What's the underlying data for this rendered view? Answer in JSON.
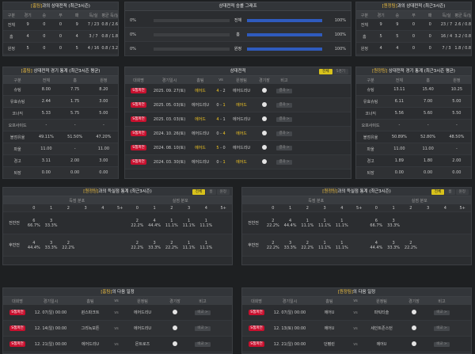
{
  "overall": {
    "left": {
      "title_hl": "[홈팀]",
      "title_rest": "과의 상대전적 (최근3시즌)",
      "headers": [
        "구분",
        "경기",
        "승",
        "무",
        "패",
        "득/실",
        "평균 득/실"
      ],
      "rows": [
        [
          "전체",
          "9",
          "0",
          "0",
          "9",
          "7 / 23",
          "0.8 / 2.6"
        ],
        [
          "홈",
          "4",
          "0",
          "0",
          "4",
          "3 / 7",
          "0.8 / 1.8"
        ],
        [
          "원정",
          "5",
          "0",
          "0",
          "5",
          "4 / 16",
          "0.8 / 3.2"
        ]
      ]
    },
    "right": {
      "title_hl": "[원정팀]",
      "title_rest": "과의 상대전적 (최근3시즌)",
      "headers": [
        "구분",
        "경기",
        "승",
        "무",
        "패",
        "득/실",
        "평균 득/실"
      ],
      "rows": [
        [
          "전체",
          "9",
          "9",
          "0",
          "0",
          "23 / 7",
          "2.6 / 0.8"
        ],
        [
          "홈",
          "5",
          "5",
          "0",
          "0",
          "16 / 4",
          "3.2 / 0.8"
        ],
        [
          "원정",
          "4",
          "4",
          "0",
          "0",
          "7 / 3",
          "1.8 / 0.8"
        ]
      ]
    }
  },
  "winrate": {
    "title": "상대전적 승률 그래프",
    "rows": [
      {
        "left": "0%",
        "label": "전체",
        "right": "100%",
        "value": 100
      },
      {
        "left": "0%",
        "label": "홈",
        "right": "100%",
        "value": 100
      },
      {
        "left": "0%",
        "label": "원정",
        "right": "100%",
        "value": 100
      }
    ]
  },
  "match_stats": {
    "left": {
      "title_hl": "[홈팀]",
      "title_rest": " 상대전적 경기 통계 (최근3시즌 평균)",
      "headers": [
        "구분",
        "전체",
        "홈",
        "원정"
      ],
      "rows": [
        [
          "슈팅",
          "8.00",
          "7.75",
          "8.20"
        ],
        [
          "유효슈팅",
          "2.44",
          "1.75",
          "3.00"
        ],
        [
          "코너킥",
          "5.33",
          "5.75",
          "5.00"
        ],
        [
          "오프사이드",
          "-",
          "-",
          "-"
        ],
        [
          "볼점유율",
          "49.11%",
          "51.50%",
          "47.20%"
        ],
        [
          "파울",
          "11.00",
          "-",
          "11.00"
        ],
        [
          "경고",
          "3.11",
          "2.00",
          "3.00"
        ],
        [
          "퇴장",
          "0.00",
          "0.00",
          "0.00"
        ]
      ]
    },
    "right": {
      "title_hl": "[원정팀]",
      "title_rest": " 상대전적 경기 통계 (최근3시즌 평균)",
      "headers": [
        "구분",
        "전체",
        "홈",
        "원정"
      ],
      "rows": [
        [
          "슈팅",
          "13.11",
          "15.40",
          "10.25"
        ],
        [
          "유효슈팅",
          "6.11",
          "7.00",
          "5.00"
        ],
        [
          "코너킥",
          "5.56",
          "5.60",
          "5.50"
        ],
        [
          "오프사이드",
          "-",
          "-",
          "-"
        ],
        [
          "볼점유율",
          "50.89%",
          "52.80%",
          "48.50%"
        ],
        [
          "파울",
          "11.00",
          "11.00",
          "-"
        ],
        [
          "경고",
          "1.89",
          "1.80",
          "2.00"
        ],
        [
          "퇴장",
          "0.00",
          "0.00",
          "0.00"
        ]
      ]
    }
  },
  "h2h": {
    "title": "상대전적",
    "toggle": [
      "전체",
      "5경기"
    ],
    "headers": [
      "대회명",
      "경기일시",
      "홈팀",
      "vs",
      "원정팀",
      "경기장",
      "비고"
    ],
    "rows": [
      {
        "league": "S챔피언",
        "date": "2025. 09. 27(토)",
        "home": "에어드",
        "hs": "4",
        "as": "2",
        "away": "에어드리U",
        "btn": "결과 >"
      },
      {
        "league": "S챔피언",
        "date": "2025. 05. 03(토)",
        "home": "에어드리U",
        "hs": "0",
        "as": "1",
        "away": "에어드",
        "btn": "결과 >"
      },
      {
        "league": "S챔피언",
        "date": "2025. 03. 03(토)",
        "home": "에어드",
        "hs": "4",
        "as": "1",
        "away": "에어드리U",
        "btn": "결과 >"
      },
      {
        "league": "S챔피언",
        "date": "2024. 10. 26(토)",
        "home": "에어드리U",
        "hs": "0",
        "as": "4",
        "away": "에어드",
        "btn": "결과 >"
      },
      {
        "league": "S챔피언",
        "date": "2024. 08. 10(토)",
        "home": "에어드",
        "hs": "5",
        "as": "0",
        "away": "에어드리U",
        "btn": "결과 >"
      },
      {
        "league": "S챔피언",
        "date": "2024. 03. 30(토)",
        "home": "에어드리U",
        "hs": "0",
        "as": "1",
        "away": "에어드",
        "btn": "결과 >"
      }
    ]
  },
  "goal_dist": {
    "left": {
      "title_hl": "[원정팀]",
      "title_rest": "과의 득실점 통계 (최근3시즌)",
      "toggle": [
        "전체",
        "홈",
        "원정"
      ],
      "score_head": "득점 분포",
      "concede_head": "실점 분포",
      "cols": [
        "0",
        "1",
        "2",
        "3",
        "4",
        "5+"
      ],
      "rows": [
        {
          "label": "전반전",
          "score": [
            [
              "6",
              "66.7%"
            ],
            [
              "3",
              "33.3%"
            ],
            [],
            [],
            [],
            []
          ],
          "concede": [
            [
              "2",
              "22.2%"
            ],
            [
              "4",
              "44.4%"
            ],
            [
              "1",
              "11.1%"
            ],
            [
              "1",
              "11.1%"
            ],
            [
              "1",
              "11.1%"
            ],
            []
          ]
        },
        {
          "label": "후반전",
          "score": [
            [
              "4",
              "44.4%"
            ],
            [
              "3",
              "33.3%"
            ],
            [
              "2",
              "22.2%"
            ],
            [],
            [],
            []
          ],
          "concede": [
            [
              "2",
              "22.2%"
            ],
            [
              "3",
              "33.3%"
            ],
            [
              "2",
              "22.2%"
            ],
            [
              "1",
              "11.1%"
            ],
            [
              "1",
              "11.1%"
            ],
            []
          ]
        }
      ]
    },
    "right": {
      "title_hl": "[원정팀]",
      "title_rest": "과의 득실점 통계 (최근3시즌)",
      "toggle": [
        "전체",
        "홈",
        "원정"
      ],
      "score_head": "득점 분포",
      "concede_head": "실점 분포",
      "cols": [
        "0",
        "1",
        "2",
        "3",
        "4",
        "5+"
      ],
      "rows": [
        {
          "label": "전반전",
          "score": [
            [
              "2",
              "22.2%"
            ],
            [
              "4",
              "44.4%"
            ],
            [
              "1",
              "11.1%"
            ],
            [
              "1",
              "11.1%"
            ],
            [
              "1",
              "11.1%"
            ],
            []
          ],
          "concede": [
            [
              "6",
              "66.7%"
            ],
            [
              "3",
              "33.3%"
            ],
            [],
            [],
            [],
            []
          ]
        },
        {
          "label": "후반전",
          "score": [
            [
              "2",
              "22.2%"
            ],
            [
              "3",
              "33.3%"
            ],
            [
              "2",
              "22.2%"
            ],
            [
              "1",
              "11.1%"
            ],
            [
              "1",
              "11.1%"
            ],
            []
          ],
          "concede": [
            [
              "4",
              "44.4%"
            ],
            [
              "3",
              "33.3%"
            ],
            [
              "2",
              "22.2%"
            ],
            [],
            [],
            []
          ]
        }
      ]
    }
  },
  "next": {
    "left": {
      "title_hl": "[홈팀]",
      "title_rest": "의 다음 일정",
      "headers": [
        "대회명",
        "경기일시",
        "홈팀",
        "vs",
        "원정팀",
        "경기장",
        "비고"
      ],
      "rows": [
        {
          "league": "S챔피언",
          "date": "12. 07(일) 00:00",
          "home": "퀸스파크트",
          "away": "에어드리U",
          "btn": "비교 >"
        },
        {
          "league": "S챔피언",
          "date": "12. 14(일) 00:00",
          "home": "그리녹모튼",
          "away": "에어드리U",
          "btn": "비교 >"
        },
        {
          "league": "S챔피언",
          "date": "12. 21(일) 00:00",
          "home": "에어드리U",
          "away": "몬트로즈",
          "btn": "비교 >"
        }
      ]
    },
    "right": {
      "title_hl": "[원정팀]",
      "title_rest": "의 다음 일정",
      "headers": [
        "대회명",
        "경기일시",
        "홈팀",
        "vs",
        "원정팀",
        "경기장",
        "비고"
      ],
      "rows": [
        {
          "league": "S챔피언",
          "date": "12. 07(일) 00:00",
          "home": "에어U",
          "away": "파틱티슬",
          "btn": "비교 >"
        },
        {
          "league": "S챔피언",
          "date": "12. 13(토) 00:00",
          "home": "에어U",
          "away": "세인트존스턴",
          "btn": "비교 >"
        },
        {
          "league": "S챔피언",
          "date": "12. 21(일) 00:00",
          "home": "던펌린",
          "away": "에어U",
          "btn": "비교 >"
        }
      ]
    }
  }
}
